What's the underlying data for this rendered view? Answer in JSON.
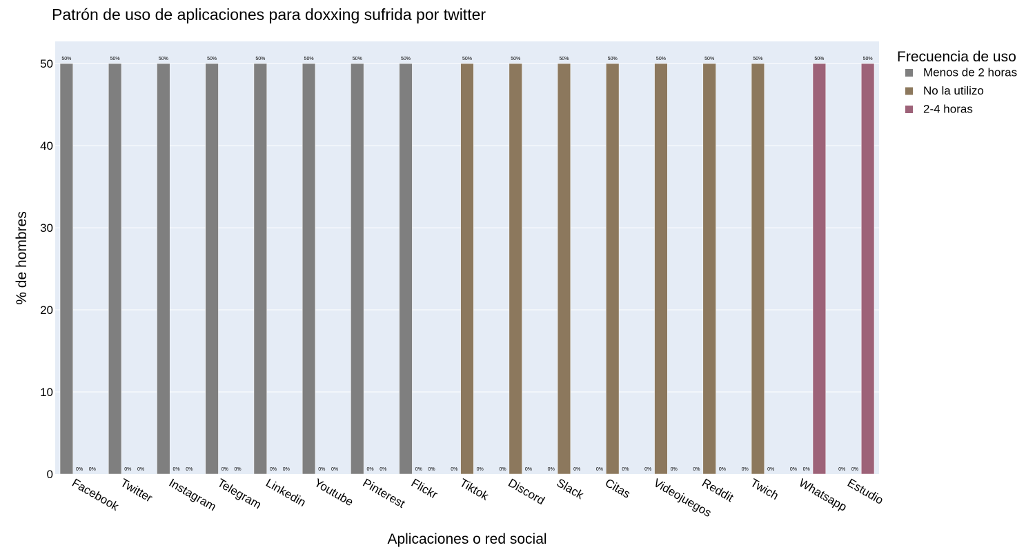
{
  "chart_data": {
    "type": "bar",
    "title": "Patrón de uso de aplicaciones para doxxing sufrida por twitter",
    "xlabel": "Aplicaciones o red social",
    "ylabel": "% de hombres",
    "ylim": [
      0,
      52.7
    ],
    "yticks": [
      0,
      10,
      20,
      30,
      40,
      50
    ],
    "grid": true,
    "categories": [
      "Facebook",
      "Twitter",
      "Instagram",
      "Telegram",
      "Linkedin",
      "Youtube",
      "Pinterest",
      "Flickr",
      "Tiktok",
      "Discord",
      "Slack",
      "Citas",
      "Videojuegos",
      "Reddit",
      "Twich",
      "Whatsapp",
      "Estudio"
    ],
    "series": [
      {
        "name": "Menos de 2 horas",
        "color": "#7f7f7f",
        "values": [
          50,
          50,
          50,
          50,
          50,
          50,
          50,
          50,
          0,
          0,
          0,
          0,
          0,
          0,
          0,
          0,
          0
        ],
        "labels": [
          "50%",
          "50%",
          "50%",
          "50%",
          "50%",
          "50%",
          "50%",
          "50%",
          "0%",
          "0%",
          "0%",
          "0%",
          "0%",
          "0%",
          "0%",
          "0%",
          "0%"
        ]
      },
      {
        "name": "No la utilizo",
        "color": "#8c785d",
        "values": [
          0,
          0,
          0,
          0,
          0,
          0,
          0,
          0,
          50,
          50,
          50,
          50,
          50,
          50,
          50,
          0,
          0
        ],
        "labels": [
          "0%",
          "0%",
          "0%",
          "0%",
          "0%",
          "0%",
          "0%",
          "0%",
          "50%",
          "50%",
          "50%",
          "50%",
          "50%",
          "50%",
          "50%",
          "0%",
          "0%"
        ]
      },
      {
        "name": "2-4 horas",
        "color": "#9d6278",
        "values": [
          0,
          0,
          0,
          0,
          0,
          0,
          0,
          0,
          0,
          0,
          0,
          0,
          0,
          0,
          0,
          50,
          50
        ],
        "labels": [
          "0%",
          "0%",
          "0%",
          "0%",
          "0%",
          "0%",
          "0%",
          "0%",
          "0%",
          "0%",
          "0%",
          "0%",
          "0%",
          "0%",
          "0%",
          "50%",
          "50%"
        ]
      }
    ],
    "legend": {
      "title": "Frecuencia de uso",
      "placement": "top-right, outside plot"
    },
    "colors": {
      "plot_background": "#e5ecf6",
      "gridline": "#ffffff"
    }
  }
}
